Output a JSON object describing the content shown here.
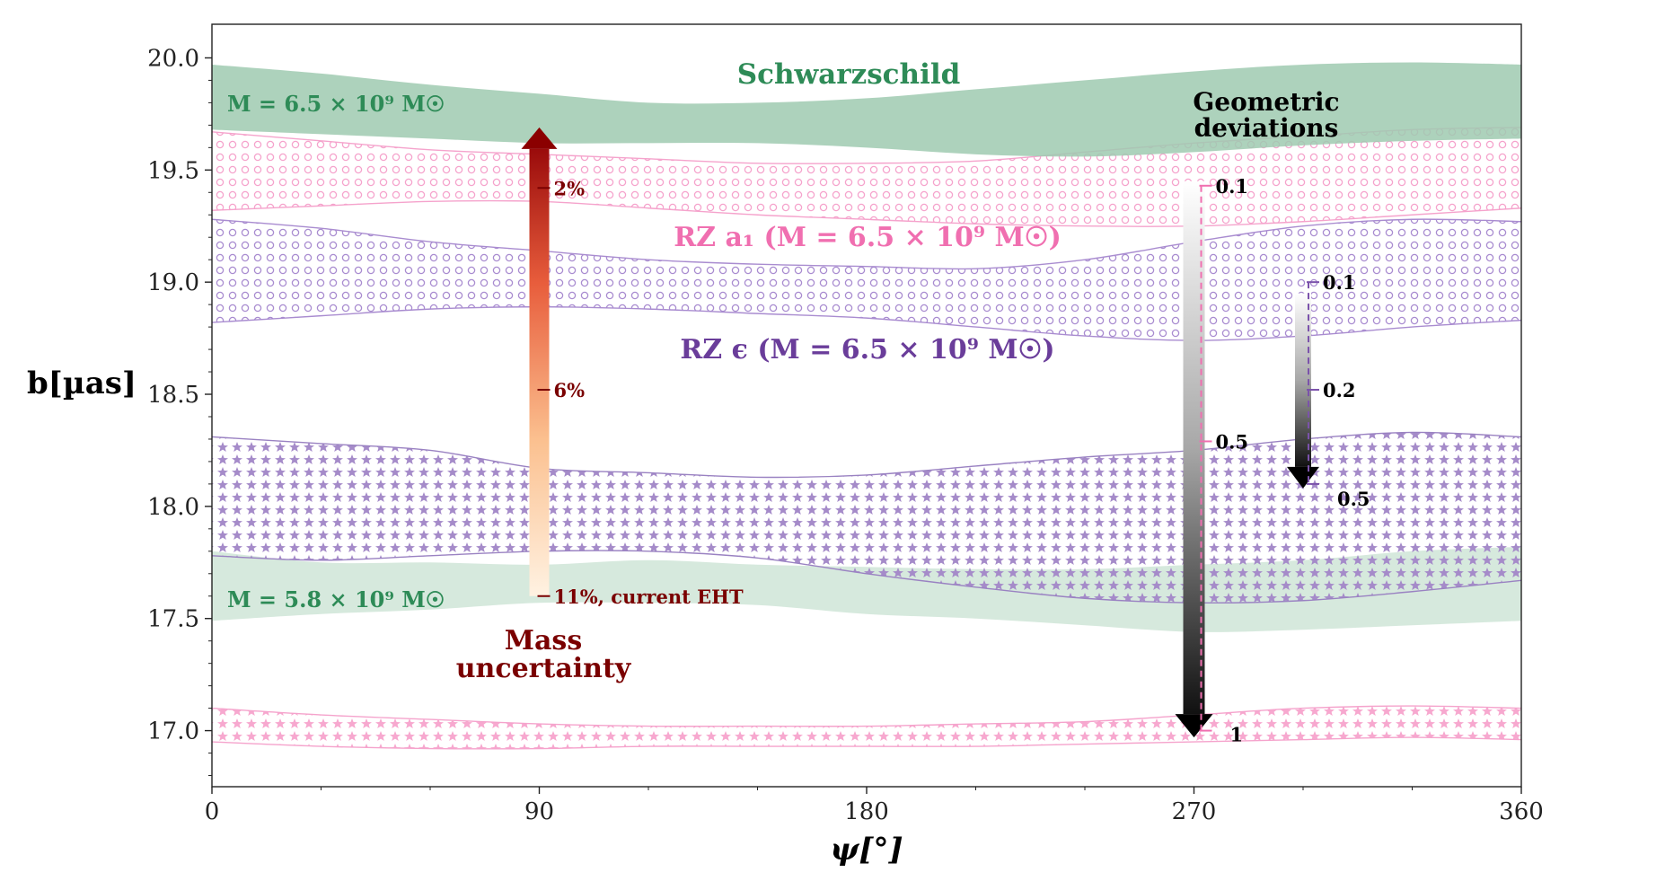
{
  "chart_data": {
    "type": "area",
    "title": "",
    "xlabel": "ψ[°]",
    "ylabel": "b[µas]",
    "xlim": [
      0,
      360
    ],
    "ylim": [
      16.75,
      20.15
    ],
    "xticks": [
      0,
      90,
      180,
      270,
      360
    ],
    "xtick_labels": [
      "0",
      "90",
      "180",
      "270",
      "360"
    ],
    "yticks": [
      17.0,
      17.5,
      18.0,
      18.5,
      19.0,
      19.5,
      20.0
    ],
    "ytick_labels": [
      "17.0",
      "17.5",
      "18.0",
      "18.5",
      "19.0",
      "19.5",
      "20.0"
    ],
    "x": [
      0,
      30,
      60,
      90,
      120,
      150,
      180,
      210,
      240,
      270,
      300,
      330,
      360
    ],
    "series": [
      {
        "name": "Schwarzschild, M = 5.8e9",
        "style": "solid",
        "upper": [
          17.8,
          17.75,
          17.75,
          17.74,
          17.76,
          17.74,
          17.73,
          17.72,
          17.72,
          17.74,
          17.76,
          17.8,
          17.82
        ],
        "lower": [
          17.49,
          17.52,
          17.54,
          17.57,
          17.57,
          17.56,
          17.52,
          17.5,
          17.47,
          17.44,
          17.45,
          17.47,
          17.49
        ]
      },
      {
        "name": "RZ epsilon (lower)",
        "style": "stars",
        "upper": [
          18.31,
          18.28,
          18.25,
          18.17,
          18.15,
          18.13,
          18.14,
          18.18,
          18.22,
          18.25,
          18.3,
          18.33,
          18.31
        ],
        "lower": [
          17.78,
          17.76,
          17.78,
          17.8,
          17.8,
          17.77,
          17.7,
          17.64,
          17.59,
          17.57,
          17.58,
          17.62,
          17.67
        ]
      },
      {
        "name": "RZ a1 (lower)",
        "style": "stars",
        "upper": [
          17.1,
          17.07,
          17.05,
          17.03,
          17.02,
          17.02,
          17.02,
          17.03,
          17.04,
          17.07,
          17.1,
          17.11,
          17.1
        ],
        "lower": [
          16.95,
          16.93,
          16.92,
          16.92,
          16.93,
          16.93,
          16.93,
          16.93,
          16.94,
          16.95,
          16.96,
          16.97,
          16.96
        ]
      },
      {
        "name": "RZ epsilon (M = 6.5e9)",
        "style": "circles",
        "upper": [
          19.28,
          19.24,
          19.18,
          19.14,
          19.1,
          19.08,
          19.07,
          19.06,
          19.1,
          19.18,
          19.25,
          19.28,
          19.27
        ],
        "lower": [
          18.82,
          18.85,
          18.88,
          18.89,
          18.88,
          18.86,
          18.84,
          18.8,
          18.76,
          18.74,
          18.76,
          18.8,
          18.83
        ]
      },
      {
        "name": "RZ a1 (M = 6.5e9)",
        "style": "circles",
        "upper": [
          19.67,
          19.63,
          19.59,
          19.57,
          19.55,
          19.53,
          19.53,
          19.54,
          19.58,
          19.62,
          19.65,
          19.68,
          19.69
        ],
        "lower": [
          19.32,
          19.34,
          19.36,
          19.36,
          19.33,
          19.3,
          19.28,
          19.26,
          19.25,
          19.25,
          19.27,
          19.3,
          19.33
        ]
      },
      {
        "name": "Schwarzschild, M = 6.5e9",
        "style": "solid",
        "upper": [
          19.97,
          19.93,
          19.88,
          19.84,
          19.8,
          19.8,
          19.82,
          19.86,
          19.9,
          19.94,
          19.97,
          19.98,
          19.97
        ],
        "lower": [
          19.68,
          19.66,
          19.64,
          19.62,
          19.62,
          19.62,
          19.6,
          19.57,
          19.56,
          19.58,
          19.61,
          19.63,
          19.64
        ]
      }
    ],
    "annotations": {
      "schwarzschild": "Schwarzschild",
      "m_high": "M = 6.5 × 10⁹ M☉",
      "m_low": "M = 5.8 × 10⁹ M☉",
      "rz_a1": "RZ a₁ (M = 6.5 × 10⁹ M☉)",
      "rz_eps": "RZ ϵ (M = 6.5 × 10⁹ M☉)",
      "geo_line1": "Geometric",
      "geo_line2": "deviations",
      "mass_line1": "Mass",
      "mass_line2": "uncertainty"
    },
    "mass_arrow": {
      "x": 90,
      "y_from": 17.6,
      "y_to": 19.69,
      "ticks": [
        {
          "y": 19.42,
          "label": "2%"
        },
        {
          "y": 18.52,
          "label": "6%"
        },
        {
          "y": 17.6,
          "label": "11%, current EHT"
        }
      ]
    },
    "geo_arrow_a1": {
      "x": 270,
      "y_from": 19.45,
      "y_to": 16.97,
      "ticks": [
        {
          "y": 19.43,
          "label": "0.1"
        },
        {
          "y": 18.29,
          "label": "0.5"
        },
        {
          "y": 17.0,
          "label": "1"
        }
      ]
    },
    "geo_arrow_eps": {
      "x": 300,
      "y_from": 18.95,
      "y_to": 18.08,
      "ticks": [
        {
          "y": 19.0,
          "label": "0.1"
        },
        {
          "y": 18.52,
          "label": "0.2"
        },
        {
          "y": 18.1,
          "label": "0.5"
        }
      ]
    },
    "colors": {
      "green": "#2e8b57",
      "green_fill": "#9fcab0",
      "green_fill_light": "#cfe5d7",
      "pink": "#f06fb0",
      "purple": "#7b52ab",
      "purple_text": "#6a3d9a",
      "dark_red": "#7a0000",
      "black": "#000000"
    }
  }
}
